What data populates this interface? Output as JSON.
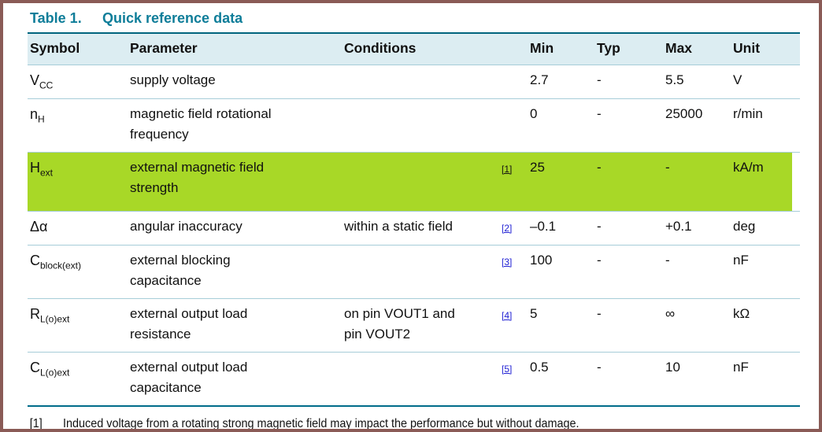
{
  "colors": {
    "frame_border": "#8a5b56",
    "title_teal": "#0e7d99",
    "rule_teal_top": "#00647e",
    "rule_teal_bottom": "#006c8a",
    "header_bg": "#dcedf2",
    "row_separator": "#a6cdd8",
    "highlight_green": "#a8d827",
    "footnote_ref_blue": "#2222d4",
    "text": "#111111"
  },
  "table": {
    "label": "Table 1.",
    "title": "Quick reference data",
    "columns": [
      "Symbol",
      "Parameter",
      "Conditions",
      "Min",
      "Typ",
      "Max",
      "Unit"
    ],
    "rows": [
      {
        "symbol_base": "V",
        "symbol_sub": "CC",
        "parameter": "supply voltage",
        "conditions": "",
        "ref": "",
        "min": "2.7",
        "typ": "-",
        "max": "5.5",
        "unit": "V"
      },
      {
        "symbol_base": "n",
        "symbol_sub": "H",
        "parameter": "magnetic field rotational frequency",
        "conditions": "",
        "ref": "",
        "min": "0",
        "typ": "-",
        "max": "25000",
        "unit": "r/min"
      },
      {
        "symbol_base": "H",
        "symbol_sub": "ext",
        "parameter": "external magnetic field strength",
        "conditions": "",
        "ref": "[1]",
        "min": "25",
        "typ": "-",
        "max": "-",
        "unit": "kA/m"
      },
      {
        "symbol_base": "Δα",
        "symbol_sub": "",
        "parameter": "angular inaccuracy",
        "conditions": "within a static field",
        "ref": "[2]",
        "min": "–0.1",
        "typ": "-",
        "max": "+0.1",
        "unit": "deg"
      },
      {
        "symbol_base": "C",
        "symbol_sub": "block(ext)",
        "parameter": "external blocking capacitance",
        "conditions": "",
        "ref": "[3]",
        "min": "100",
        "typ": "-",
        "max": "-",
        "unit": "nF"
      },
      {
        "symbol_base": "R",
        "symbol_sub": "L(o)ext",
        "parameter": "external output load resistance",
        "conditions": "on pin VOUT1 and pin VOUT2",
        "ref": "[4]",
        "min": "5",
        "typ": "-",
        "max": "∞",
        "unit": "kΩ"
      },
      {
        "symbol_base": "C",
        "symbol_sub": "L(o)ext",
        "parameter": "external output load capacitance",
        "conditions": "",
        "ref": "[5]",
        "min": "0.5",
        "typ": "-",
        "max": "10",
        "unit": "nF"
      }
    ],
    "highlighted_row_index": 2,
    "footnote": {
      "marker": "[1]",
      "text": "Induced voltage from a rotating strong magnetic field may impact the performance but without damage."
    }
  }
}
